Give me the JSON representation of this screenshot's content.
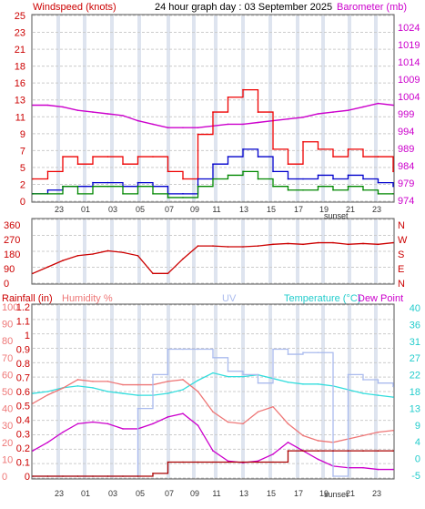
{
  "header": {
    "left_title": "Windspeed (knots)",
    "center_title": "24 hour graph day : 03 September 2025",
    "right_title": "Barometer (mb)"
  },
  "bottom_header": {
    "rainfall": "Rainfall (in)",
    "humidity": "Humidity %",
    "uv": "UV",
    "temperature": "Temperature (°C)",
    "dewpoint": "Dew Point"
  },
  "sunset_label": "sunset",
  "colors": {
    "wind": "#cc0000",
    "gust": "#ee0000",
    "avg_wind": "#0000cc",
    "wind_fill": "#008800",
    "barometer": "#cc00cc",
    "direction": "#cc0000",
    "temperature": "#33dddd",
    "humidity": "#ee7777",
    "dewpoint": "#cc00cc",
    "uv": "#aabbee",
    "rain": "#aa0000",
    "grid": "#cccccc",
    "night_band": "#d0d8e8"
  },
  "chart_data": [
    {
      "type": "line",
      "name_top": "wind-barometer",
      "x_ticks": [
        "23",
        "01",
        "03",
        "05",
        "07",
        "09",
        "11",
        "13",
        "15",
        "17",
        "19",
        "21",
        "23"
      ],
      "ylabel_left": "Windspeed (knots)",
      "ylabel_right": "Barometer (mb)",
      "ylim_left": [
        0,
        25
      ],
      "ylim_right": [
        974,
        1024
      ],
      "left_ticks": [
        "25",
        "23",
        "21",
        "18",
        "16",
        "13",
        "11",
        "9",
        "7",
        "5",
        "2",
        "0"
      ],
      "right_ticks": [
        "1024",
        "1019",
        "1014",
        "1009",
        "1004",
        "999",
        "994",
        "989",
        "984",
        "979",
        "974"
      ],
      "series": [
        {
          "name": "Barometer (mb)",
          "axis": "right",
          "x": [
            0,
            1,
            2,
            3,
            4,
            5,
            6,
            7,
            8,
            9,
            10,
            11,
            12,
            13,
            14,
            15,
            16,
            17,
            18,
            19,
            20,
            21,
            22,
            23,
            24
          ],
          "values": [
            1001.5,
            1001.5,
            1001,
            1000,
            999.5,
            999,
            998.5,
            997,
            996,
            995,
            995,
            995,
            995.5,
            996,
            996,
            996.5,
            997,
            997.5,
            998,
            999,
            999.5,
            1000,
            1001,
            1002,
            1001.5
          ]
        },
        {
          "name": "Gust",
          "axis": "left",
          "x": [
            0,
            1,
            2,
            3,
            4,
            5,
            6,
            7,
            8,
            9,
            10,
            11,
            12,
            13,
            14,
            15,
            16,
            17,
            18,
            19,
            20,
            21,
            22,
            23,
            24
          ],
          "values": [
            3,
            4,
            6,
            5,
            6,
            6,
            5,
            6,
            6,
            4,
            3,
            9,
            12,
            14,
            15,
            12,
            7,
            5,
            8,
            7,
            6,
            7,
            6,
            6,
            4
          ]
        },
        {
          "name": "Average",
          "axis": "left",
          "x": [
            0,
            1,
            2,
            3,
            4,
            5,
            6,
            7,
            8,
            9,
            10,
            11,
            12,
            13,
            14,
            15,
            16,
            17,
            18,
            19,
            20,
            21,
            22,
            23,
            24
          ],
          "values": [
            1,
            1.5,
            2,
            2,
            2.5,
            2.5,
            2,
            2.5,
            2,
            1,
            1,
            3,
            5,
            6,
            7,
            6,
            4,
            3,
            3,
            3.5,
            3,
            3.5,
            3,
            2.5,
            2
          ]
        },
        {
          "name": "Wind",
          "axis": "left",
          "x": [
            0,
            1,
            2,
            3,
            4,
            5,
            6,
            7,
            8,
            9,
            10,
            11,
            12,
            13,
            14,
            15,
            16,
            17,
            18,
            19,
            20,
            21,
            22,
            23,
            24
          ],
          "values": [
            1,
            1,
            2,
            1,
            2,
            2,
            1,
            2,
            1,
            0.5,
            0.5,
            2,
            3,
            3.5,
            4,
            3,
            2,
            1.5,
            1.5,
            2,
            1.5,
            2,
            1.5,
            1,
            1
          ]
        }
      ]
    },
    {
      "type": "line",
      "name_top": "wind-direction",
      "x_ticks": [
        "23",
        "01",
        "03",
        "05",
        "07",
        "09",
        "11",
        "13",
        "15",
        "17",
        "19",
        "21",
        "23"
      ],
      "ylim": [
        0,
        360
      ],
      "left_ticks": [
        "360",
        "270",
        "180",
        "90",
        "0"
      ],
      "right_ticks": [
        "N",
        "W",
        "S",
        "E",
        "N"
      ],
      "series": [
        {
          "name": "Direction",
          "x": [
            0,
            1,
            2,
            3,
            4,
            5,
            6,
            7,
            8,
            9,
            10,
            11,
            12,
            13,
            14,
            15,
            16,
            17,
            18,
            19,
            20,
            21,
            22,
            23,
            24
          ],
          "values": [
            60,
            100,
            140,
            170,
            180,
            200,
            190,
            170,
            60,
            60,
            150,
            230,
            230,
            225,
            225,
            230,
            240,
            245,
            240,
            250,
            250,
            240,
            245,
            240,
            250
          ]
        }
      ]
    },
    {
      "type": "line",
      "name_top": "temperature-humidity",
      "x_ticks": [
        "23",
        "01",
        "03",
        "05",
        "07",
        "09",
        "11",
        "13",
        "15",
        "17",
        "19",
        "21",
        "23"
      ],
      "ylim_rain": [
        0,
        1.2
      ],
      "ylim_humidity": [
        0,
        100
      ],
      "ylim_temp": [
        -5,
        40
      ],
      "rain_ticks": [
        "1.2",
        "1.1",
        "1",
        "0.9",
        "0.8",
        "0.7",
        "0.6",
        "0.5",
        "0.4",
        "0.3",
        "0.2",
        "0.1",
        "0"
      ],
      "hum_ticks": [
        "100",
        "90",
        "80",
        "70",
        "60",
        "50",
        "40",
        "30",
        "20",
        "10",
        "0"
      ],
      "temp_ticks": [
        "40",
        "36",
        "31",
        "27",
        "22",
        "18",
        "13",
        "9",
        "4",
        "0",
        "-5"
      ],
      "series": [
        {
          "name": "Temperature (°C)",
          "axis": "temp",
          "x": [
            0,
            1,
            2,
            3,
            4,
            5,
            6,
            7,
            8,
            9,
            10,
            11,
            12,
            13,
            14,
            15,
            16,
            17,
            18,
            19,
            20,
            21,
            22,
            23,
            24
          ],
          "values": [
            17,
            17.5,
            18.5,
            19,
            18.5,
            17.5,
            17,
            16.5,
            16.5,
            17,
            18,
            20.5,
            22.5,
            21.5,
            21.5,
            22,
            21,
            20,
            19.5,
            19.5,
            19,
            18,
            17,
            16.5,
            16
          ]
        },
        {
          "name": "Humidity %",
          "axis": "humidity",
          "x": [
            0,
            1,
            2,
            3,
            4,
            5,
            6,
            7,
            8,
            9,
            10,
            11,
            12,
            13,
            14,
            15,
            16,
            17,
            18,
            19,
            20,
            21,
            22,
            23,
            24
          ],
          "values": [
            43,
            48,
            52,
            57,
            56,
            56,
            54,
            54,
            54,
            56,
            57,
            50,
            38,
            32,
            31,
            38,
            41,
            31,
            24,
            21,
            20,
            22,
            24,
            26,
            27
          ]
        },
        {
          "name": "Dew Point",
          "axis": "humidity",
          "x": [
            0,
            1,
            2,
            3,
            4,
            5,
            6,
            7,
            8,
            9,
            10,
            11,
            12,
            13,
            14,
            15,
            16,
            17,
            18,
            19,
            20,
            21,
            22,
            23,
            24
          ],
          "values": [
            15,
            20,
            26,
            31,
            32,
            31,
            28,
            28,
            31,
            35,
            37,
            30,
            15,
            9,
            8,
            9,
            13,
            20,
            15,
            10,
            6,
            5,
            5,
            4,
            4
          ]
        },
        {
          "name": "UV",
          "axis": "humidity",
          "x": [
            0,
            1,
            2,
            3,
            4,
            5,
            6,
            7,
            8,
            9,
            10,
            11,
            12,
            13,
            14,
            15,
            16,
            17,
            18,
            19,
            20,
            21,
            22,
            23,
            24
          ],
          "values": [
            0,
            0,
            0,
            0,
            0,
            0,
            0,
            40,
            60,
            75,
            75,
            75,
            70,
            62,
            60,
            55,
            75,
            72,
            73,
            73,
            0,
            60,
            57,
            55,
            53
          ]
        },
        {
          "name": "Rainfall (in)",
          "axis": "rain",
          "x": [
            0,
            1,
            2,
            3,
            4,
            5,
            6,
            7,
            8,
            9,
            10,
            11,
            12,
            13,
            14,
            15,
            16,
            17,
            18,
            19,
            20,
            21,
            22,
            23,
            24
          ],
          "values": [
            0,
            0,
            0,
            0,
            0,
            0,
            0,
            0,
            0.02,
            0.1,
            0.1,
            0.1,
            0.1,
            0.1,
            0.1,
            0.1,
            0.1,
            0.18,
            0.18,
            0.18,
            0.18,
            0.18,
            0.18,
            0.18,
            0.18
          ]
        }
      ]
    }
  ]
}
